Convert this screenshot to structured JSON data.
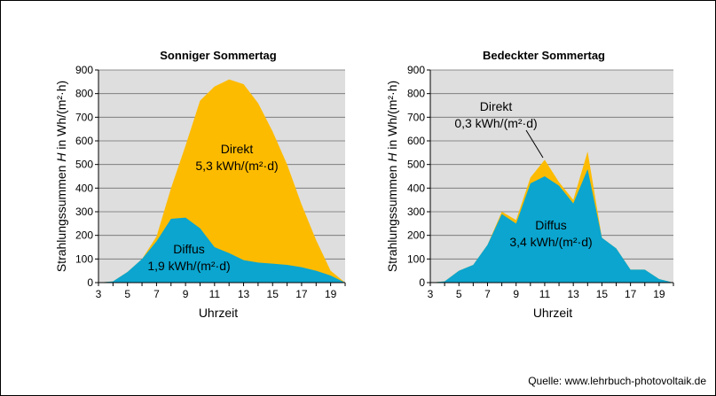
{
  "source": "Quelle: www.lehrbuch-photovoltaik.de",
  "chart_data": [
    {
      "type": "area",
      "title": "Sonniger Sommertag",
      "xlabel": "Uhrzeit",
      "ylabel_prefix": "Strahlungssummen",
      "ylabel_symbol": "H",
      "ylabel_suffix": "in Wh/(m²·h)",
      "xlim": [
        3,
        20
      ],
      "ylim": [
        0,
        900
      ],
      "xticks": [
        3,
        5,
        7,
        9,
        11,
        13,
        15,
        17,
        19
      ],
      "yticks": [
        0,
        100,
        200,
        300,
        400,
        500,
        600,
        700,
        800,
        900
      ],
      "grid": true,
      "colors": {
        "Direkt": "#FDBB00",
        "Diffus": "#0BA5CF",
        "plot_bg": "#DEDEDE"
      },
      "x": [
        3,
        4,
        5,
        6,
        7,
        8,
        9,
        10,
        11,
        12,
        13,
        14,
        15,
        16,
        17,
        18,
        19,
        20
      ],
      "series": [
        {
          "name": "Diffus",
          "values": [
            0,
            5,
            45,
            100,
            175,
            270,
            275,
            230,
            150,
            125,
            95,
            85,
            80,
            75,
            65,
            50,
            30,
            0
          ]
        },
        {
          "name": "Direkt",
          "values": [
            0,
            5,
            45,
            100,
            195,
            400,
            580,
            770,
            830,
            860,
            840,
            760,
            640,
            500,
            330,
            180,
            50,
            0
          ]
        }
      ],
      "annotations": [
        {
          "series": "Direkt",
          "label": "Direkt",
          "value": "5,3 kWh/(m²·d)"
        },
        {
          "series": "Diffus",
          "label": "Diffus",
          "value": "1,9 kWh/(m²·d)"
        }
      ]
    },
    {
      "type": "area",
      "title": "Bedeckter Sommertag",
      "xlabel": "Uhrzeit",
      "ylabel_prefix": "Strahlungssummen",
      "ylabel_symbol": "H",
      "ylabel_suffix": "in Wh/(m²·h)",
      "xlim": [
        3,
        20
      ],
      "ylim": [
        0,
        900
      ],
      "xticks": [
        3,
        5,
        7,
        9,
        11,
        13,
        15,
        17,
        19
      ],
      "yticks": [
        0,
        100,
        200,
        300,
        400,
        500,
        600,
        700,
        800,
        900
      ],
      "grid": true,
      "colors": {
        "Direkt": "#FDBB00",
        "Diffus": "#0BA5CF",
        "plot_bg": "#DEDEDE"
      },
      "x": [
        3,
        4,
        5,
        6,
        7,
        8,
        9,
        10,
        11,
        12,
        13,
        14,
        15,
        16,
        17,
        18,
        19,
        20
      ],
      "series": [
        {
          "name": "Diffus",
          "values": [
            0,
            5,
            50,
            75,
            160,
            290,
            250,
            420,
            450,
            410,
            335,
            480,
            190,
            145,
            55,
            55,
            15,
            0
          ]
        },
        {
          "name": "Direkt",
          "values": [
            0,
            5,
            50,
            75,
            160,
            300,
            265,
            445,
            520,
            425,
            350,
            555,
            190,
            145,
            55,
            55,
            15,
            0
          ]
        }
      ],
      "annotations": [
        {
          "series": "Direkt",
          "label": "Direkt",
          "value": "0,3 kWh/(m²·d)"
        },
        {
          "series": "Diffus",
          "label": "Diffus",
          "value": "3,4 kWh/(m²·d)"
        }
      ]
    }
  ]
}
